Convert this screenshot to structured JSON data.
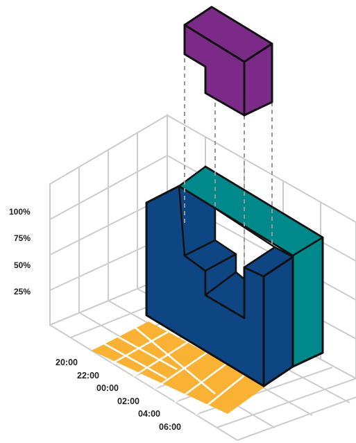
{
  "percent_axis": {
    "labels": [
      "100%",
      "75%",
      "50%",
      "25%"
    ]
  },
  "time_axis": {
    "labels": [
      "20:00",
      "22:00",
      "00:00",
      "02:00",
      "04:00",
      "06:00"
    ]
  },
  "colors": {
    "grid": "#cccccc",
    "floor_highlight": "#f9b233",
    "front_block": "#0e4583",
    "side_block": "#00898a",
    "top_piece": "#7b2a88",
    "outline": "#111111",
    "guide_dash": "#999999"
  }
}
